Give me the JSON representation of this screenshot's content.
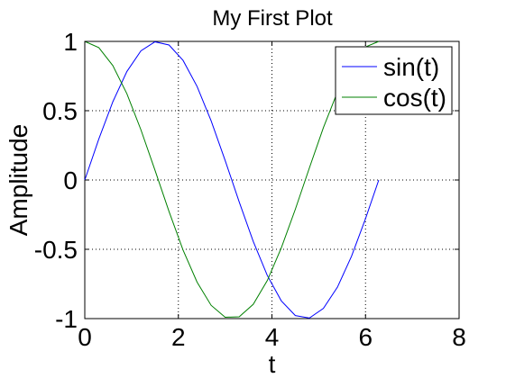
{
  "chart_data": {
    "type": "line",
    "title": "My First Plot",
    "xlabel": "t",
    "ylabel": "Amplitude",
    "xlim": [
      0,
      8
    ],
    "ylim": [
      -1,
      1
    ],
    "xticks": [
      0,
      2,
      4,
      6,
      8
    ],
    "yticks": [
      -1,
      -0.5,
      0,
      0.5,
      1
    ],
    "xtick_labels": [
      "0",
      "2",
      "4",
      "6",
      "8"
    ],
    "ytick_labels": [
      "-1",
      "-0.5",
      "0",
      "0.5",
      "1"
    ],
    "grid": true,
    "legend_position": "top-right",
    "x": [
      0,
      0.3,
      0.6,
      0.9,
      1.2,
      1.5,
      1.8,
      2.1,
      2.4,
      2.7,
      3.0,
      3.3,
      3.6,
      3.9,
      4.2,
      4.5,
      4.8,
      5.1,
      5.4,
      5.7,
      6.0,
      6.283
    ],
    "series": [
      {
        "name": "sin(t)",
        "color": "#0000ff",
        "values": [
          0,
          0.296,
          0.565,
          0.783,
          0.932,
          0.997,
          0.974,
          0.863,
          0.675,
          0.427,
          0.141,
          -0.158,
          -0.443,
          -0.688,
          -0.872,
          -0.978,
          -0.996,
          -0.926,
          -0.773,
          -0.551,
          -0.279,
          0
        ]
      },
      {
        "name": "cos(t)",
        "color": "#008000",
        "values": [
          1,
          0.955,
          0.825,
          0.622,
          0.362,
          0.071,
          -0.227,
          -0.505,
          -0.737,
          -0.904,
          -0.99,
          -0.987,
          -0.897,
          -0.726,
          -0.49,
          -0.211,
          0.087,
          0.378,
          0.635,
          0.835,
          0.96,
          1
        ]
      }
    ]
  }
}
